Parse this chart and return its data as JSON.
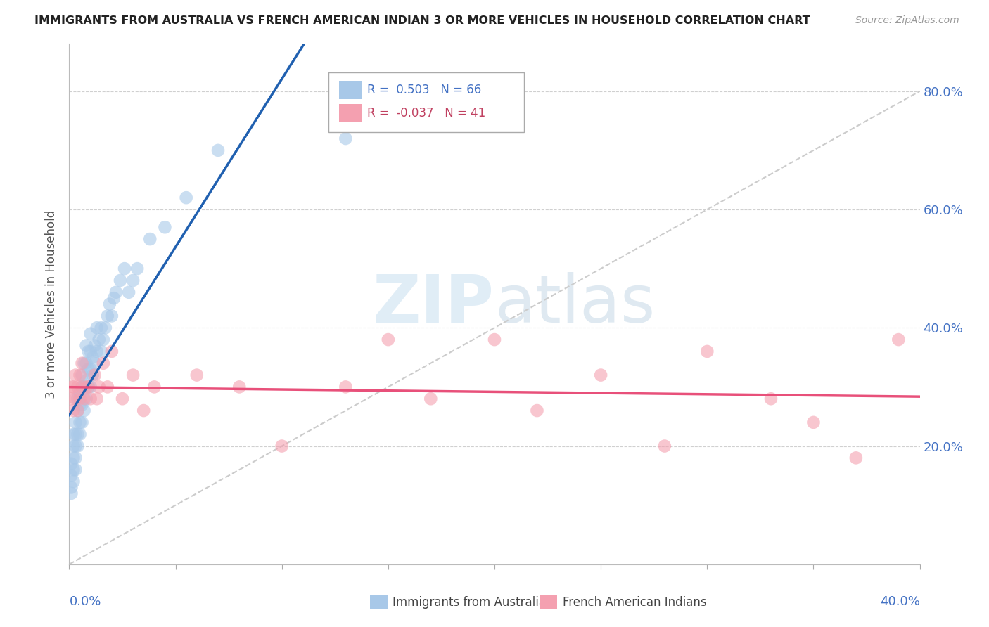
{
  "title": "IMMIGRANTS FROM AUSTRALIA VS FRENCH AMERICAN INDIAN 3 OR MORE VEHICLES IN HOUSEHOLD CORRELATION CHART",
  "source": "Source: ZipAtlas.com",
  "ylabel": "3 or more Vehicles in Household",
  "xlim": [
    0.0,
    0.4
  ],
  "ylim": [
    0.0,
    0.88
  ],
  "legend1_R": "0.503",
  "legend1_N": "66",
  "legend2_R": "-0.037",
  "legend2_N": "41",
  "blue_color": "#a8c8e8",
  "pink_color": "#f4a0b0",
  "blue_line_color": "#2060b0",
  "pink_line_color": "#e8507a",
  "ytick_positions": [
    0.2,
    0.4,
    0.6,
    0.8
  ],
  "xtick_positions": [
    0.0,
    0.05,
    0.1,
    0.15,
    0.2,
    0.25,
    0.3,
    0.35,
    0.4
  ],
  "blue_x": [
    0.001,
    0.001,
    0.001,
    0.001,
    0.002,
    0.002,
    0.002,
    0.002,
    0.002,
    0.003,
    0.003,
    0.003,
    0.003,
    0.003,
    0.004,
    0.004,
    0.004,
    0.004,
    0.005,
    0.005,
    0.005,
    0.005,
    0.006,
    0.006,
    0.006,
    0.006,
    0.007,
    0.007,
    0.007,
    0.008,
    0.008,
    0.008,
    0.008,
    0.009,
    0.009,
    0.009,
    0.01,
    0.01,
    0.01,
    0.01,
    0.011,
    0.011,
    0.012,
    0.012,
    0.013,
    0.013,
    0.014,
    0.015,
    0.015,
    0.016,
    0.017,
    0.018,
    0.019,
    0.02,
    0.021,
    0.022,
    0.024,
    0.026,
    0.028,
    0.03,
    0.032,
    0.038,
    0.045,
    0.055,
    0.07,
    0.13
  ],
  "blue_y": [
    0.12,
    0.13,
    0.15,
    0.17,
    0.14,
    0.16,
    0.18,
    0.2,
    0.22,
    0.16,
    0.18,
    0.2,
    0.22,
    0.24,
    0.2,
    0.22,
    0.26,
    0.28,
    0.22,
    0.24,
    0.27,
    0.29,
    0.24,
    0.27,
    0.3,
    0.32,
    0.26,
    0.3,
    0.34,
    0.28,
    0.31,
    0.34,
    0.37,
    0.3,
    0.33,
    0.36,
    0.3,
    0.33,
    0.36,
    0.39,
    0.32,
    0.35,
    0.34,
    0.37,
    0.36,
    0.4,
    0.38,
    0.36,
    0.4,
    0.38,
    0.4,
    0.42,
    0.44,
    0.42,
    0.45,
    0.46,
    0.48,
    0.5,
    0.46,
    0.48,
    0.5,
    0.55,
    0.57,
    0.62,
    0.7,
    0.72
  ],
  "pink_x": [
    0.001,
    0.001,
    0.002,
    0.002,
    0.003,
    0.003,
    0.004,
    0.004,
    0.005,
    0.005,
    0.006,
    0.006,
    0.007,
    0.008,
    0.009,
    0.01,
    0.012,
    0.013,
    0.014,
    0.016,
    0.018,
    0.02,
    0.025,
    0.03,
    0.035,
    0.04,
    0.06,
    0.08,
    0.1,
    0.13,
    0.15,
    0.17,
    0.2,
    0.22,
    0.25,
    0.28,
    0.3,
    0.33,
    0.35,
    0.37,
    0.39
  ],
  "pink_y": [
    0.28,
    0.3,
    0.26,
    0.3,
    0.28,
    0.32,
    0.26,
    0.3,
    0.28,
    0.32,
    0.3,
    0.34,
    0.28,
    0.3,
    0.3,
    0.28,
    0.32,
    0.28,
    0.3,
    0.34,
    0.3,
    0.36,
    0.28,
    0.32,
    0.26,
    0.3,
    0.32,
    0.3,
    0.2,
    0.3,
    0.38,
    0.28,
    0.38,
    0.26,
    0.32,
    0.2,
    0.36,
    0.28,
    0.24,
    0.18,
    0.38
  ]
}
